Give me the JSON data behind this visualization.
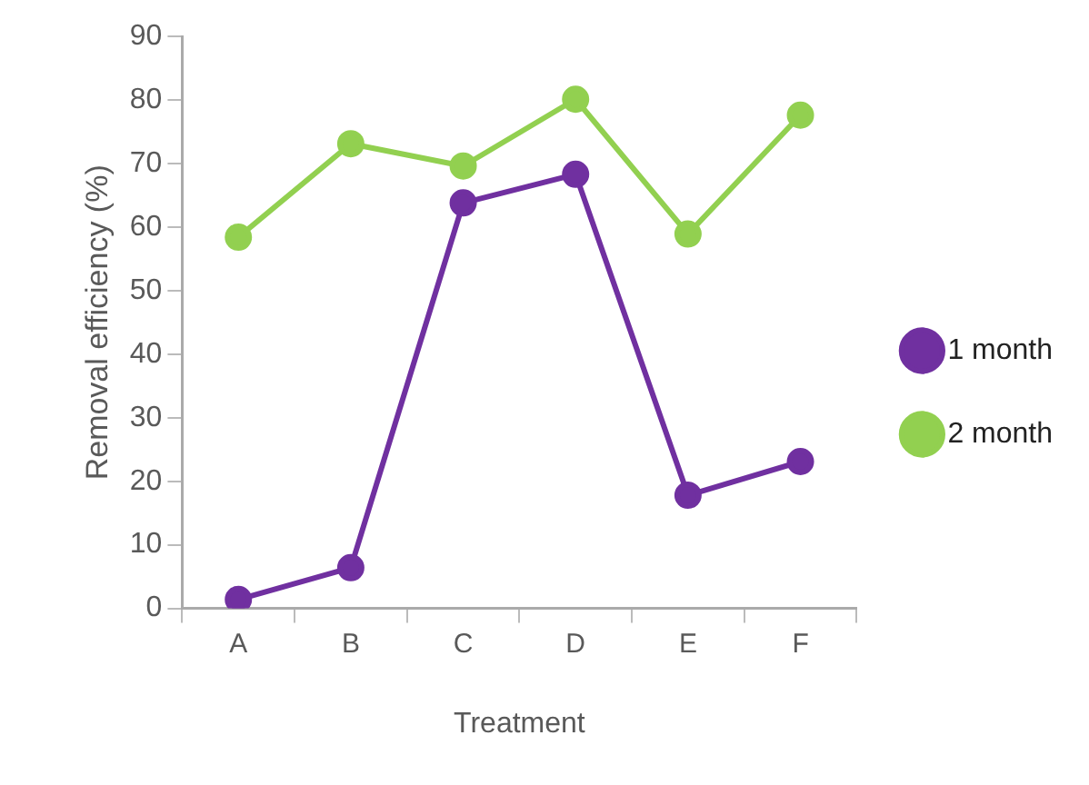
{
  "chart_data": {
    "type": "line",
    "xlabel": "Treatment",
    "ylabel": "Removal efficiency (%)",
    "categories": [
      "A",
      "B",
      "C",
      "D",
      "E",
      "F"
    ],
    "series": [
      {
        "name": "1 month",
        "color": "#7030a0",
        "values": [
          1.4,
          6.4,
          63.8,
          68.3,
          17.8,
          23.1
        ]
      },
      {
        "name": "2 month",
        "color": "#92d050",
        "values": [
          58.4,
          73.1,
          69.6,
          80.1,
          58.9,
          77.6
        ]
      }
    ],
    "ylim": [
      0,
      90
    ],
    "yticks": [
      0,
      10,
      20,
      30,
      40,
      50,
      60,
      70,
      80,
      90
    ],
    "grid": false,
    "legend": "right",
    "marker": "circle",
    "line_style": "solid"
  }
}
